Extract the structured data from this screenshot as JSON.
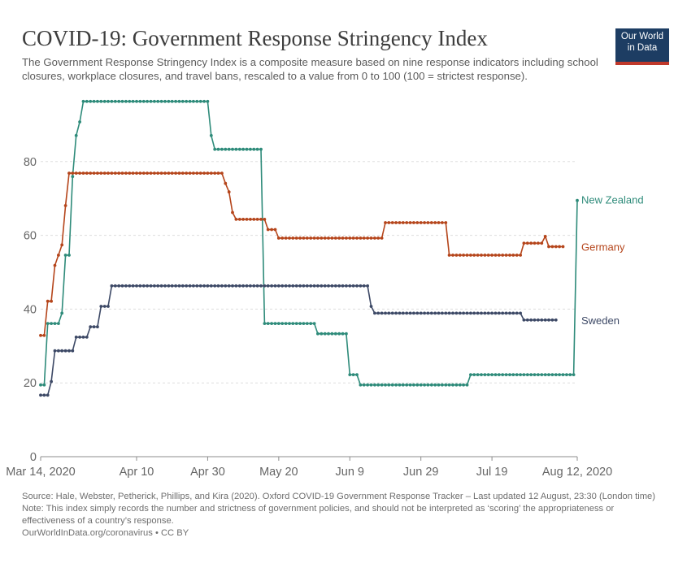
{
  "chart_data": {
    "type": "line",
    "title": "COVID-19: Government Response Stringency Index",
    "subtitle": "The Government Response Stringency Index is a composite measure based on nine response indicators including school closures, workplace closures, and travel bans, rescaled to a value from 0 to 100 (100 = strictest response).",
    "x_ticks": [
      "Mar 14, 2020",
      "Apr 10",
      "Apr 30",
      "May 20",
      "Jun 9",
      "Jun 29",
      "Jul 19",
      "Aug 12, 2020"
    ],
    "x_tick_days": [
      0,
      27,
      47,
      67,
      87,
      107,
      127,
      151
    ],
    "x_axis_note": "x values are days since Mar 14, 2020",
    "y_ticks": [
      0,
      20,
      40,
      60,
      80
    ],
    "ylim": [
      0,
      100
    ],
    "xlim": [
      0,
      151
    ],
    "series": [
      {
        "name": "New Zealand",
        "color": "#2e8b7a",
        "points": [
          [
            0,
            19.44
          ],
          [
            1,
            19.44
          ],
          [
            2,
            36.11
          ],
          [
            3,
            36.11
          ],
          [
            4,
            36.11
          ],
          [
            5,
            36.11
          ],
          [
            6,
            38.89
          ],
          [
            7,
            54.63
          ],
          [
            8,
            54.63
          ],
          [
            9,
            75.93
          ],
          [
            10,
            87.04
          ],
          [
            11,
            90.74
          ],
          [
            12,
            96.3
          ],
          [
            47,
            96.3
          ],
          [
            48,
            87.04
          ],
          [
            49,
            83.33
          ],
          [
            62,
            83.33
          ],
          [
            63,
            36.11
          ],
          [
            77,
            36.11
          ],
          [
            78,
            33.33
          ],
          [
            86,
            33.33
          ],
          [
            87,
            22.22
          ],
          [
            89,
            22.22
          ],
          [
            90,
            19.44
          ],
          [
            120,
            19.44
          ],
          [
            121,
            22.22
          ],
          [
            150,
            22.22
          ],
          [
            151,
            69.44
          ]
        ]
      },
      {
        "name": "Germany",
        "color": "#b5451b",
        "points": [
          [
            0,
            32.87
          ],
          [
            1,
            32.87
          ],
          [
            2,
            42.13
          ],
          [
            3,
            42.13
          ],
          [
            4,
            51.85
          ],
          [
            5,
            54.63
          ],
          [
            6,
            57.41
          ],
          [
            7,
            68.06
          ],
          [
            8,
            76.85
          ],
          [
            51,
            76.85
          ],
          [
            52,
            74.07
          ],
          [
            53,
            71.76
          ],
          [
            54,
            66.2
          ],
          [
            55,
            64.35
          ],
          [
            63,
            64.35
          ],
          [
            64,
            61.57
          ],
          [
            66,
            61.57
          ],
          [
            67,
            59.26
          ],
          [
            96,
            59.26
          ],
          [
            97,
            63.43
          ],
          [
            114,
            63.43
          ],
          [
            115,
            54.63
          ],
          [
            135,
            54.63
          ],
          [
            136,
            57.87
          ],
          [
            141,
            57.87
          ],
          [
            142,
            59.72
          ],
          [
            143,
            56.94
          ],
          [
            147,
            56.94
          ]
        ]
      },
      {
        "name": "Sweden",
        "color": "#3d4966",
        "points": [
          [
            0,
            16.67
          ],
          [
            1,
            16.67
          ],
          [
            2,
            16.67
          ],
          [
            3,
            20.37
          ],
          [
            4,
            28.7
          ],
          [
            9,
            28.7
          ],
          [
            10,
            32.41
          ],
          [
            13,
            32.41
          ],
          [
            14,
            35.19
          ],
          [
            16,
            35.19
          ],
          [
            17,
            40.74
          ],
          [
            19,
            40.74
          ],
          [
            20,
            46.3
          ],
          [
            92,
            46.3
          ],
          [
            93,
            40.74
          ],
          [
            94,
            38.89
          ],
          [
            135,
            38.89
          ],
          [
            136,
            37.04
          ],
          [
            145,
            37.04
          ]
        ]
      }
    ]
  },
  "logo": {
    "line1": "Our World",
    "line2": "in Data"
  },
  "footer": {
    "source": "Source: Hale, Webster, Petherick, Phillips, and Kira (2020). Oxford COVID-19 Government Response Tracker – Last updated 12 August, 23:30 (London time)",
    "note": "Note: This index simply records the number and strictness of government policies, and should not be interpreted as ‘scoring’ the appropriateness or effectiveness of a country’s response.",
    "credit": "OurWorldInData.org/coronavirus • CC BY"
  }
}
